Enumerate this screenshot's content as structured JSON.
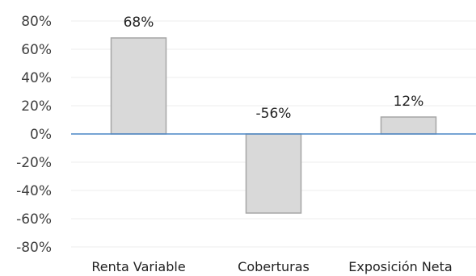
{
  "chart_data": {
    "type": "bar",
    "title": "",
    "xlabel": "",
    "ylabel": "",
    "categories": [
      "Renta Variable",
      "Coberturas",
      "Exposición Neta"
    ],
    "values": [
      68,
      -56,
      12
    ],
    "data_labels": [
      "68%",
      "-56%",
      "12%"
    ],
    "ylim": [
      -80,
      80
    ],
    "yticks": [
      80,
      60,
      40,
      20,
      0,
      -20,
      -40,
      -60,
      -80
    ],
    "ytick_labels": [
      "80%",
      "60%",
      "40%",
      "20%",
      "0%",
      "-20%",
      "-40%",
      "-60%",
      "-80%"
    ],
    "grid": true,
    "legend": "none",
    "colors": {
      "bar_fill": "#d9d9d9",
      "bar_stroke": "#a6a6a6",
      "zero_line": "#4a86c5",
      "grid": "#ececec"
    }
  }
}
